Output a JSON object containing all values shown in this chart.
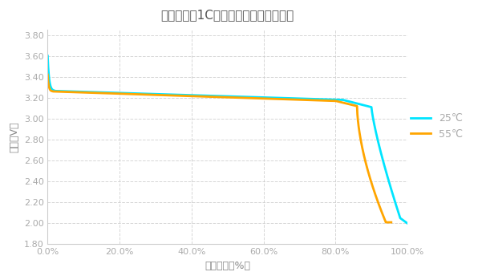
{
  "title": "不同温度下1C倍率放电的电池容量曲线",
  "xlabel": "电池容量（%）",
  "ylabel": "电压（V）",
  "xlim": [
    0,
    100
  ],
  "ylim": [
    1.8,
    3.85
  ],
  "yticks": [
    1.8,
    2.0,
    2.2,
    2.4,
    2.6,
    2.8,
    3.0,
    3.2,
    3.4,
    3.6,
    3.8
  ],
  "xticks": [
    0,
    20,
    40,
    60,
    80,
    100
  ],
  "xtick_labels": [
    "0.0%",
    "20.0%",
    "40.0%",
    "60.0%",
    "80.0%",
    "100.0%"
  ],
  "ytick_labels": [
    "1.80",
    "2.00",
    "2.20",
    "2.40",
    "2.60",
    "2.80",
    "3.00",
    "3.20",
    "3.40",
    "3.60",
    "3.80"
  ],
  "color_25": "#00E5FF",
  "color_55": "#FFA500",
  "legend_25": "25℃",
  "legend_55": "55℃",
  "background_color": "#ffffff",
  "grid_color": "#cccccc",
  "title_color": "#555555",
  "axis_label_color": "#888888",
  "tick_color": "#aaaaaa"
}
